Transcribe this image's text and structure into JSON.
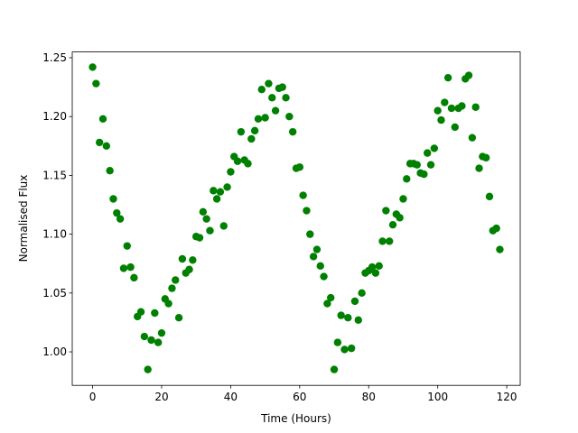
{
  "chart_data": {
    "type": "scatter",
    "xlabel": "Time (Hours)",
    "ylabel": "Normalised Flux",
    "color": "#008000",
    "x": [
      0,
      1,
      2,
      3,
      4,
      5,
      6,
      7,
      8,
      9,
      10,
      11,
      12,
      13,
      14,
      15,
      16,
      17,
      18,
      19,
      20,
      21,
      22,
      23,
      24,
      25,
      26,
      27,
      28,
      29,
      30,
      31,
      32,
      33,
      34,
      35,
      36,
      37,
      38,
      39,
      40,
      41,
      42,
      43,
      44,
      45,
      46,
      47,
      48,
      49,
      50,
      51,
      52,
      53,
      54,
      55,
      56,
      57,
      58,
      59,
      60,
      61,
      62,
      63,
      64,
      65,
      66,
      67,
      68,
      69,
      70,
      71,
      72,
      73,
      74,
      75,
      76,
      77,
      78,
      79,
      80,
      81,
      82,
      83,
      84,
      85,
      86,
      87,
      88,
      89,
      90,
      91,
      92,
      93,
      94,
      95,
      96,
      97,
      98,
      99,
      100,
      101,
      102,
      103,
      104,
      105,
      106,
      107,
      108,
      109,
      110,
      111,
      112,
      113,
      114,
      115,
      116,
      117,
      118
    ],
    "values": [
      1.242,
      1.228,
      1.178,
      1.198,
      1.175,
      1.154,
      1.13,
      1.118,
      1.113,
      1.071,
      1.09,
      1.072,
      1.063,
      1.03,
      1.034,
      1.013,
      0.985,
      1.01,
      1.033,
      1.008,
      1.016,
      1.045,
      1.041,
      1.054,
      1.061,
      1.029,
      1.079,
      1.067,
      1.07,
      1.078,
      1.098,
      1.097,
      1.119,
      1.113,
      1.103,
      1.137,
      1.13,
      1.136,
      1.107,
      1.14,
      1.153,
      1.166,
      1.162,
      1.187,
      1.163,
      1.16,
      1.181,
      1.188,
      1.198,
      1.223,
      1.199,
      1.228,
      1.216,
      1.205,
      1.224,
      1.225,
      1.216,
      1.2,
      1.187,
      1.156,
      1.157,
      1.133,
      1.12,
      1.1,
      1.081,
      1.087,
      1.073,
      1.064,
      1.041,
      1.046,
      0.985,
      1.008,
      1.031,
      1.002,
      1.029,
      1.003,
      1.043,
      1.027,
      1.05,
      1.067,
      1.069,
      1.072,
      1.067,
      1.073,
      1.094,
      1.12,
      1.094,
      1.108,
      1.117,
      1.114,
      1.13,
      1.147,
      1.16,
      1.16,
      1.159,
      1.152,
      1.151,
      1.169,
      1.159,
      1.173,
      1.205,
      1.197,
      1.212,
      1.233,
      1.207,
      1.191,
      1.207,
      1.209,
      1.232,
      1.235,
      1.182,
      1.208,
      1.156,
      1.166,
      1.165,
      1.132,
      1.103,
      1.105,
      1.087
    ],
    "xlim": [
      -5.9,
      123.9
    ],
    "ylim": [
      0.9715,
      1.2549
    ],
    "xticks": [
      0,
      20,
      40,
      60,
      80,
      100,
      120
    ],
    "yticks": [
      {
        "value": 1,
        "label": "1.00"
      },
      1.05,
      {
        "value": 1.1,
        "label": "1.10"
      },
      1.15,
      {
        "value": 1.2,
        "label": "1.20"
      },
      1.25
    ]
  }
}
